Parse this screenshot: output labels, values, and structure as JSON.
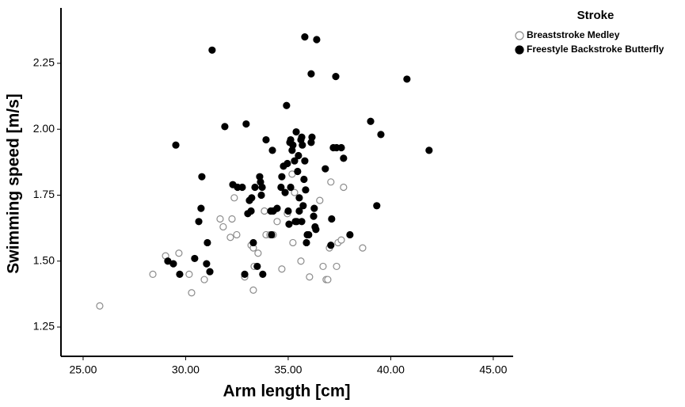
{
  "chart_data": {
    "type": "scatter",
    "x_label": "Arm length [cm]",
    "y_label": "Swimming speed [m/s]",
    "legend_title": "Stroke",
    "legend_position": "top-right",
    "xlim": [
      23.92,
      45.97
    ],
    "ylim": [
      1.139,
      2.46
    ],
    "xticks": [
      {
        "value": 25,
        "label": "25.00"
      },
      {
        "value": 30,
        "label": "30.00"
      },
      {
        "value": 35,
        "label": "35.00"
      },
      {
        "value": 40,
        "label": "40.00"
      },
      {
        "value": 45,
        "label": "45.00"
      }
    ],
    "yticks": [
      {
        "value": 1.25,
        "label": "1.25"
      },
      {
        "value": 1.5,
        "label": "1.50"
      },
      {
        "value": 1.75,
        "label": "1.75"
      },
      {
        "value": 2,
        "label": "2.00"
      },
      {
        "value": 2.25,
        "label": "2.25"
      }
    ],
    "series": [
      {
        "name": "Breaststroke Medley",
        "color": "#8c8c8c",
        "filled": false,
        "x": [
          25.81,
          28.4,
          29.02,
          29.67,
          30.17,
          30.29,
          30.91,
          31.68,
          31.83,
          32.18,
          32.26,
          32.37,
          32.49,
          32.88,
          33.19,
          33.3,
          33.34,
          33.53,
          33.84,
          33.92,
          34.11,
          34.27,
          34.46,
          34.69,
          34.96,
          35.19,
          35.23,
          35.31,
          35.62,
          36.04,
          36.54,
          36.7,
          36.85,
          36.93,
          37.01,
          37.08,
          37.36,
          37.43,
          37.59,
          37.7,
          38.63,
          33.3
        ],
        "values": [
          1.33,
          1.45,
          1.52,
          1.53,
          1.45,
          1.38,
          1.43,
          1.66,
          1.63,
          1.59,
          1.66,
          1.74,
          1.6,
          1.44,
          1.56,
          1.39,
          1.48,
          1.53,
          1.69,
          1.6,
          1.6,
          1.6,
          1.65,
          1.47,
          1.68,
          1.83,
          1.57,
          1.76,
          1.5,
          1.44,
          1.73,
          1.48,
          1.43,
          1.43,
          1.55,
          1.8,
          1.48,
          1.57,
          1.58,
          1.78,
          1.55,
          1.55
        ]
      },
      {
        "name": "Freestyle Backstroke Butterfly",
        "color": "#000000",
        "filled": true,
        "x": [
          29.52,
          31.29,
          29.13,
          29.4,
          29.71,
          30.44,
          30.64,
          30.75,
          30.79,
          31.02,
          31.06,
          31.18,
          31.91,
          32.3,
          32.53,
          32.76,
          32.88,
          32.95,
          33.03,
          33.11,
          33.19,
          33.22,
          33.3,
          33.38,
          33.49,
          33.61,
          33.65,
          33.69,
          33.73,
          33.76,
          33.92,
          34.15,
          34.19,
          34.23,
          34.27,
          34.46,
          34.65,
          34.69,
          34.77,
          34.92,
          34.96,
          35.0,
          35.04,
          35.08,
          35.12,
          35.12,
          35.19,
          35.23,
          35.31,
          35.35,
          35.39,
          35.42,
          35.46,
          35.5,
          35.54,
          35.54,
          35.62,
          35.66,
          35.66,
          35.69,
          35.73,
          35.77,
          35.81,
          35.81,
          35.85,
          35.89,
          35.93,
          36.0,
          36.12,
          36.12,
          36.16,
          36.24,
          36.27,
          36.31,
          36.35,
          36.39,
          36.81,
          37.08,
          37.12,
          37.2,
          37.32,
          37.36,
          37.59,
          37.7,
          38.01,
          39.02,
          39.32,
          39.52,
          40.79,
          41.87,
          34.85
        ],
        "values": [
          1.94,
          2.3,
          1.5,
          1.49,
          1.45,
          1.51,
          1.65,
          1.7,
          1.82,
          1.49,
          1.57,
          1.46,
          2.01,
          1.79,
          1.78,
          1.78,
          1.45,
          2.02,
          1.68,
          1.73,
          1.69,
          1.74,
          1.57,
          1.78,
          1.48,
          1.82,
          1.8,
          1.75,
          1.78,
          1.45,
          1.96,
          1.69,
          1.6,
          1.92,
          1.69,
          1.7,
          1.78,
          1.82,
          1.86,
          2.09,
          1.87,
          1.69,
          1.64,
          1.95,
          1.96,
          1.78,
          1.92,
          1.94,
          1.88,
          1.65,
          1.99,
          1.65,
          1.84,
          1.9,
          1.69,
          1.74,
          1.96,
          1.97,
          1.65,
          1.94,
          1.71,
          1.81,
          2.35,
          1.88,
          1.77,
          1.57,
          1.6,
          1.6,
          2.21,
          1.95,
          1.97,
          1.67,
          1.7,
          1.63,
          1.62,
          2.34,
          1.85,
          1.56,
          1.66,
          1.93,
          2.2,
          1.93,
          1.93,
          1.89,
          1.6,
          2.03,
          1.71,
          1.98,
          2.19,
          1.92,
          1.76
        ]
      }
    ]
  }
}
